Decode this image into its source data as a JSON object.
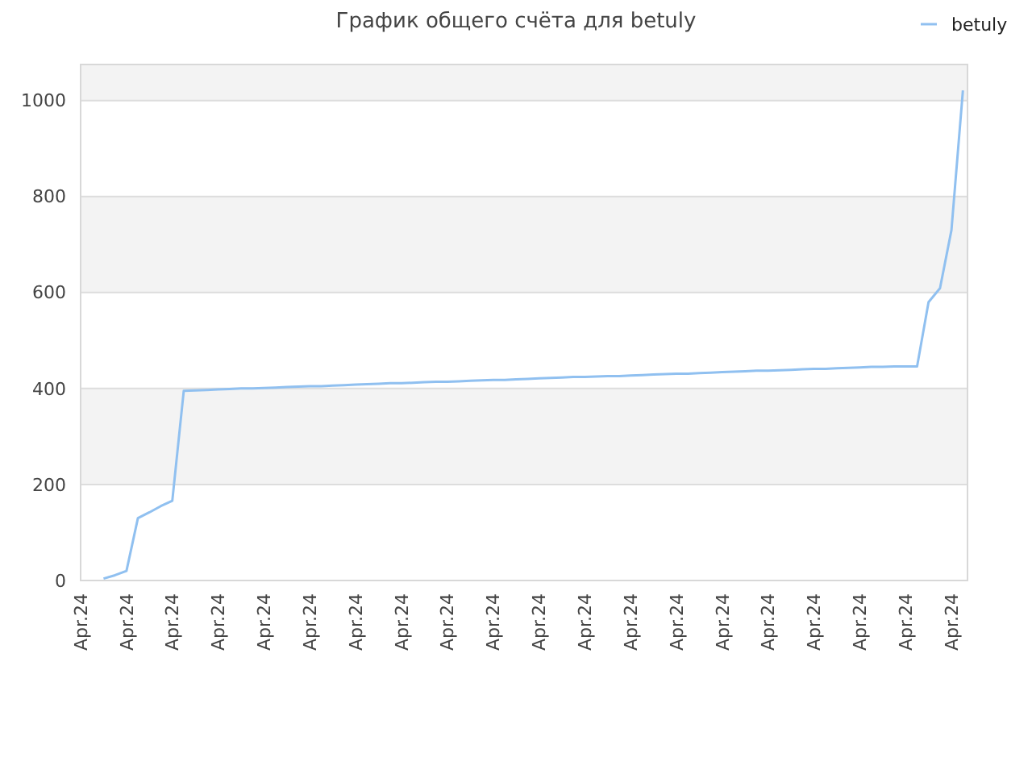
{
  "chart_data": {
    "type": "line",
    "title": "График общего счёта для betuly",
    "categories": [
      "Apr.24",
      null,
      null,
      null,
      "Apr.24",
      null,
      null,
      null,
      "Apr.24",
      null,
      null,
      null,
      "Apr.24",
      null,
      null,
      null,
      "Apr.24",
      null,
      null,
      null,
      "Apr.24",
      null,
      null,
      null,
      "Apr.24",
      null,
      null,
      null,
      "Apr.24",
      null,
      null,
      null,
      "Apr.24",
      null,
      null,
      null,
      "Apr.24",
      null,
      null,
      null,
      "Apr.24",
      null,
      null,
      null,
      "Apr.24",
      null,
      null,
      null,
      "Apr.24",
      null,
      null,
      null,
      "Apr.24",
      null,
      null,
      null,
      "Apr.24",
      null,
      null,
      null,
      "Apr.24",
      null,
      null,
      null,
      "Apr.24",
      null,
      null,
      null,
      "Apr.24",
      null,
      null,
      null,
      "Apr.24",
      null,
      null,
      null,
      "Apr.24",
      null
    ],
    "ylim": [
      0,
      1075
    ],
    "yticks": [
      0,
      200,
      400,
      600,
      800,
      1000
    ],
    "grid": "y",
    "legend": "top right",
    "series": [
      {
        "name": "betuly",
        "color": "#90c0f0",
        "values": [
          null,
          null,
          4,
          11,
          20,
          130,
          142,
          155,
          166,
          395,
          396,
          397,
          398,
          399,
          400,
          400,
          401,
          402,
          403,
          404,
          405,
          405,
          406,
          407,
          408,
          409,
          410,
          411,
          411,
          412,
          413,
          414,
          414,
          415,
          416,
          417,
          418,
          418,
          419,
          420,
          421,
          422,
          423,
          424,
          424,
          425,
          426,
          426,
          427,
          428,
          429,
          430,
          431,
          431,
          432,
          433,
          434,
          435,
          436,
          437,
          437,
          438,
          439,
          440,
          441,
          441,
          442,
          443,
          444,
          445,
          445,
          446,
          446,
          446,
          580,
          609,
          730,
          1021
        ]
      }
    ]
  }
}
